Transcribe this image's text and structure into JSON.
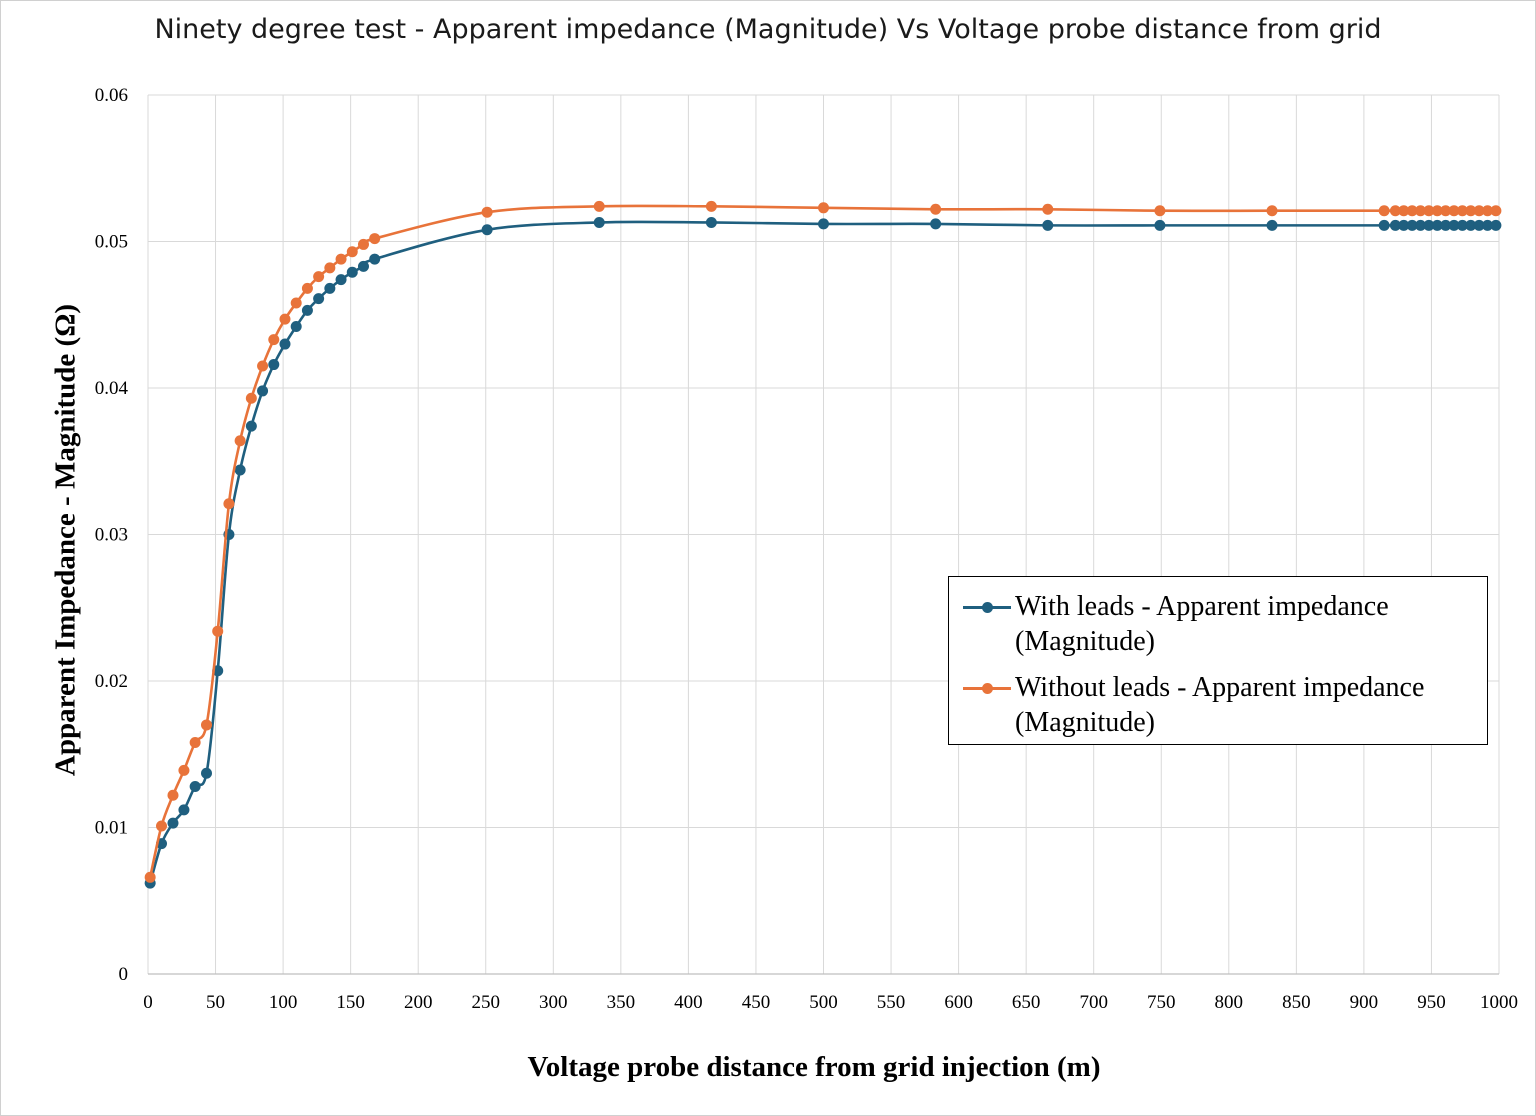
{
  "chart_data": {
    "type": "line",
    "title": "Ninety degree test - Apparent impedance (Magnitude) Vs Voltage probe distance from grid",
    "xlabel": "Voltage probe distance from grid injection  (m)",
    "ylabel": "Apparent Impedance - Magnitude (Ω)",
    "xlim": [
      0,
      1000
    ],
    "ylim": [
      0,
      0.06
    ],
    "xticks": [
      "0",
      "50",
      "100",
      "150",
      "200",
      "250",
      "300",
      "350",
      "400",
      "450",
      "500",
      "550",
      "600",
      "650",
      "700",
      "750",
      "800",
      "850",
      "900",
      "950",
      "1000"
    ],
    "yticks": [
      "0",
      "0.01",
      "0.02",
      "0.03",
      "0.04",
      "0.05",
      "0.06"
    ],
    "grid": true,
    "legend_position": "right",
    "series": [
      {
        "name": "With leads - Apparent impedance (Magnitude)",
        "name_lines": [
          "With leads - Apparent impedance",
          "(Magnitude)"
        ],
        "color": "#1f5f7f",
        "x": [
          1.6,
          10,
          18.5,
          26.6,
          34.9,
          43.3,
          51.6,
          59.9,
          68.2,
          76.5,
          84.8,
          93.1,
          101.4,
          109.7,
          118.0,
          126.3,
          134.6,
          142.9,
          151.2,
          159.5,
          167.8,
          251.0,
          334.0,
          417.0,
          500.0,
          583.0,
          666.0,
          749.0,
          832.0,
          915.0,
          923.3,
          929.5,
          935.7,
          941.9,
          948.1,
          954.3,
          960.5,
          966.7,
          972.9,
          979.1,
          985.3,
          991.5,
          997.7
        ],
        "y": [
          0.0062,
          0.0089,
          0.0103,
          0.0112,
          0.0128,
          0.0137,
          0.0207,
          0.03,
          0.0344,
          0.0374,
          0.0398,
          0.0416,
          0.043,
          0.0442,
          0.0453,
          0.0461,
          0.0468,
          0.0474,
          0.0479,
          0.0483,
          0.0488,
          0.0508,
          0.0513,
          0.0513,
          0.0512,
          0.0512,
          0.0511,
          0.0511,
          0.0511,
          0.0511,
          0.0511,
          0.0511,
          0.0511,
          0.0511,
          0.0511,
          0.0511,
          0.0511,
          0.0511,
          0.0511,
          0.0511,
          0.0511,
          0.0511,
          0.0511
        ]
      },
      {
        "name": "Without leads - Apparent impedance (Magnitude)",
        "name_lines": [
          "Without leads - Apparent impedance",
          "(Magnitude)"
        ],
        "color": "#e8733a",
        "x": [
          1.6,
          10,
          18.5,
          26.6,
          34.9,
          43.3,
          51.6,
          59.9,
          68.2,
          76.5,
          84.8,
          93.1,
          101.4,
          109.7,
          118.0,
          126.3,
          134.6,
          142.9,
          151.2,
          159.5,
          167.8,
          251.0,
          334.0,
          417.0,
          500.0,
          583.0,
          666.0,
          749.0,
          832.0,
          915.0,
          923.3,
          929.5,
          935.7,
          941.9,
          948.1,
          954.3,
          960.5,
          966.7,
          972.9,
          979.1,
          985.3,
          991.5,
          997.7
        ],
        "y": [
          0.0066,
          0.0101,
          0.0122,
          0.0139,
          0.0158,
          0.017,
          0.0234,
          0.0321,
          0.0364,
          0.0393,
          0.0415,
          0.0433,
          0.0447,
          0.0458,
          0.0468,
          0.0476,
          0.0482,
          0.0488,
          0.0493,
          0.0498,
          0.0502,
          0.052,
          0.0524,
          0.0524,
          0.0523,
          0.0522,
          0.0522,
          0.0521,
          0.0521,
          0.0521,
          0.0521,
          0.0521,
          0.0521,
          0.0521,
          0.0521,
          0.0521,
          0.0521,
          0.0521,
          0.0521,
          0.0521,
          0.0521,
          0.0521,
          0.0521
        ]
      }
    ]
  }
}
